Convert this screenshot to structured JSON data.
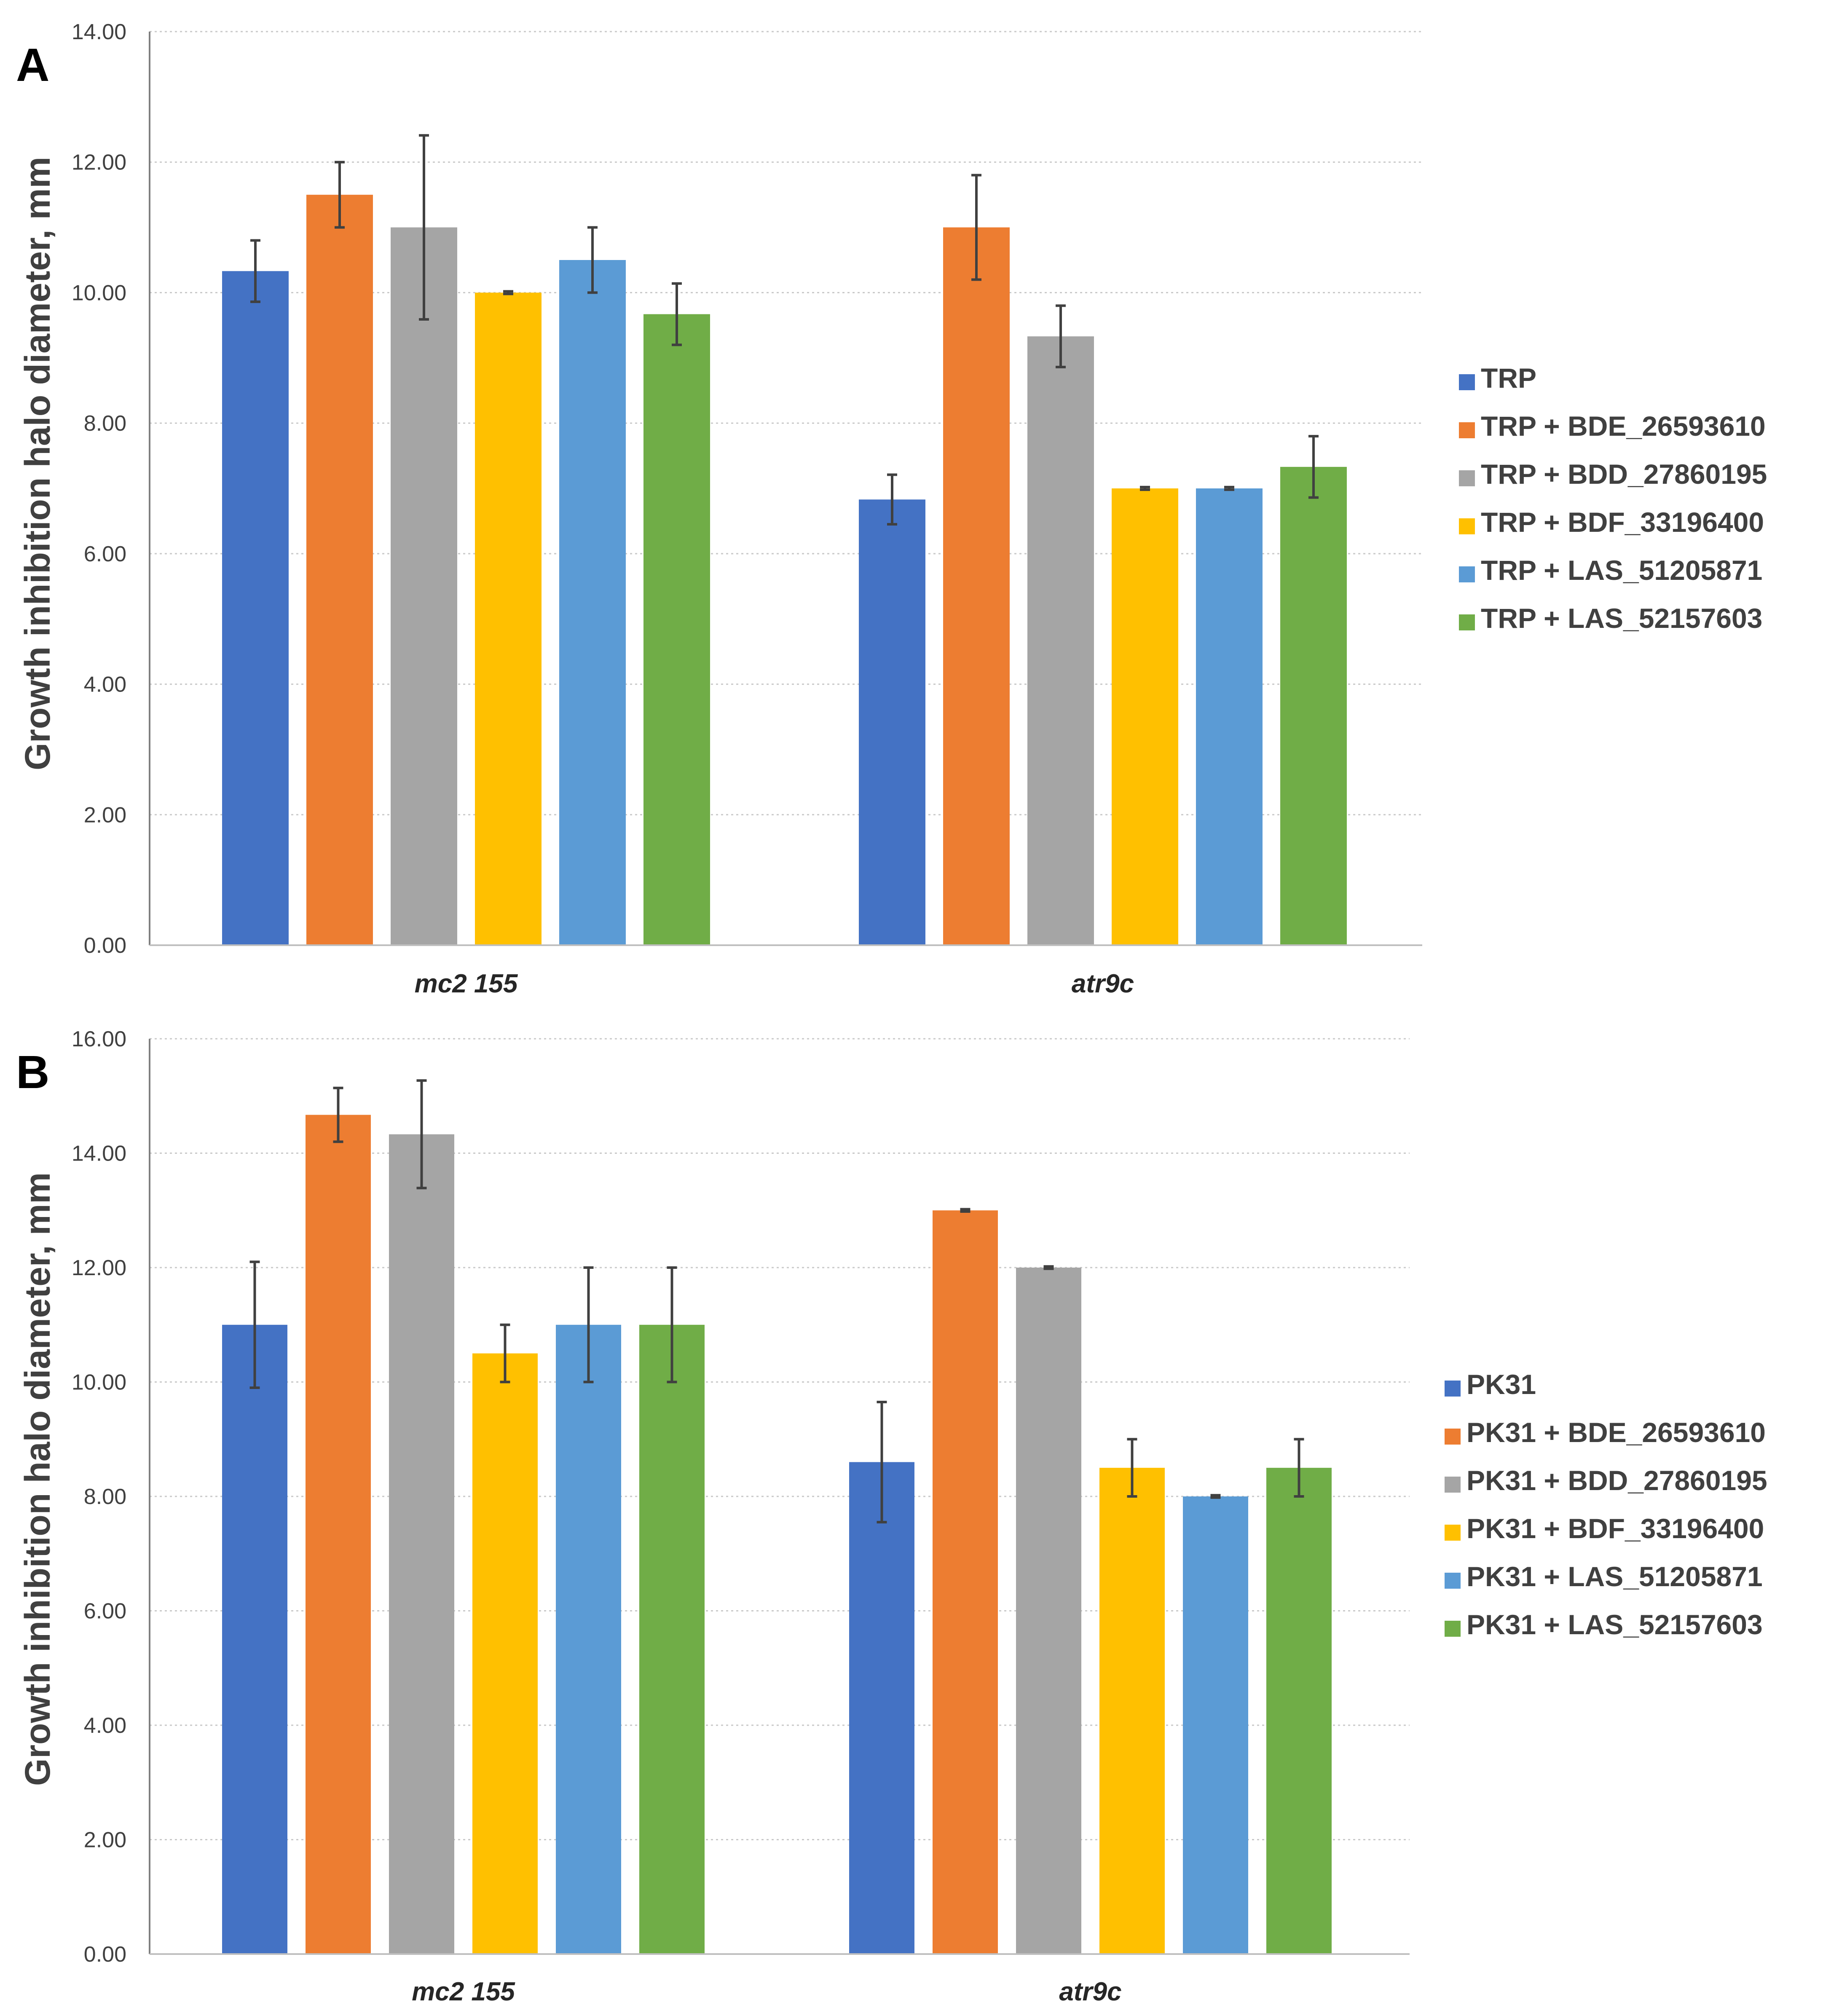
{
  "chart_data": [
    {
      "panel": "A",
      "type": "bar",
      "ylabel": "Growth inhibition halo diameter, mm",
      "xlabel": "",
      "ylim": [
        0,
        14
      ],
      "yticks": [
        "0.00",
        "2.00",
        "4.00",
        "6.00",
        "8.00",
        "10.00",
        "12.00",
        "14.00"
      ],
      "grid": true,
      "legend_position": "right",
      "categories": [
        "mc2 155",
        "atr9c"
      ],
      "series": [
        {
          "name": "TRP",
          "color": "#4472C4",
          "values": [
            10.33,
            6.83
          ],
          "errors": [
            0.47,
            0.38
          ]
        },
        {
          "name": "TRP + BDE_26593610",
          "color": "#ED7D31",
          "values": [
            11.5,
            11.0
          ],
          "errors": [
            0.5,
            0.8
          ]
        },
        {
          "name": "TRP + BDD_27860195",
          "color": "#A5A5A5",
          "values": [
            11.0,
            9.33
          ],
          "errors": [
            1.41,
            0.47
          ]
        },
        {
          "name": "TRP + BDF_33196400",
          "color": "#FFC000",
          "values": [
            10.0,
            7.0
          ],
          "errors": [
            0.02,
            0.02
          ]
        },
        {
          "name": "TRP + LAS_51205871",
          "color": "#5B9BD5",
          "values": [
            10.5,
            7.0
          ],
          "errors": [
            0.5,
            0.02
          ]
        },
        {
          "name": "TRP + LAS_52157603",
          "color": "#70AD47",
          "values": [
            9.67,
            7.33
          ],
          "errors": [
            0.47,
            0.47
          ]
        }
      ]
    },
    {
      "panel": "B",
      "type": "bar",
      "ylabel": "Growth inhibition halo diameter, mm",
      "xlabel": "",
      "ylim": [
        0,
        16
      ],
      "yticks": [
        "0.00",
        "2.00",
        "4.00",
        "6.00",
        "8.00",
        "10.00",
        "12.00",
        "14.00",
        "16.00"
      ],
      "grid": true,
      "legend_position": "right",
      "categories": [
        "mc2 155",
        "atr9c"
      ],
      "series": [
        {
          "name": "PK31",
          "color": "#4472C4",
          "values": [
            11.0,
            8.6
          ],
          "errors": [
            1.1,
            1.05
          ]
        },
        {
          "name": "PK31 + BDE_26593610",
          "color": "#ED7D31",
          "values": [
            14.67,
            13.0
          ],
          "errors": [
            0.47,
            0.02
          ]
        },
        {
          "name": "PK31 + BDD_27860195",
          "color": "#A5A5A5",
          "values": [
            14.33,
            12.0
          ],
          "errors": [
            0.94,
            0.02
          ]
        },
        {
          "name": "PK31 + BDF_33196400",
          "color": "#FFC000",
          "values": [
            10.5,
            8.5
          ],
          "errors": [
            0.5,
            0.5
          ]
        },
        {
          "name": "PK31 + LAS_51205871",
          "color": "#5B9BD5",
          "values": [
            11.0,
            8.0
          ],
          "errors": [
            1.0,
            0.02
          ]
        },
        {
          "name": "PK31 + LAS_52157603",
          "color": "#70AD47",
          "values": [
            11.0,
            8.5
          ],
          "errors": [
            1.0,
            0.5
          ]
        }
      ]
    }
  ]
}
